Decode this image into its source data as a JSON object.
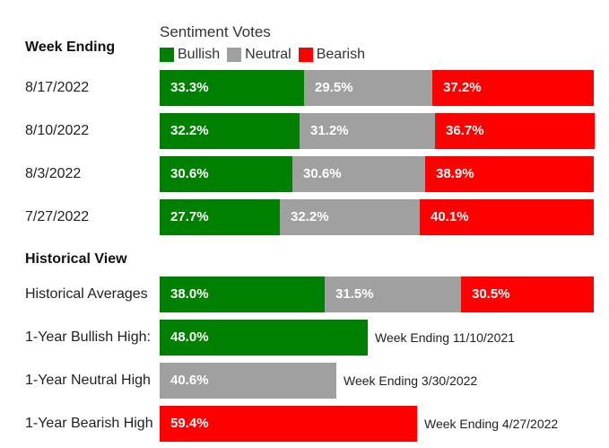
{
  "legend": {
    "title": "Sentiment Votes",
    "items": [
      {
        "label": "Bullish",
        "color": "#008000"
      },
      {
        "label": "Neutral",
        "color": "#a0a0a0"
      },
      {
        "label": "Bearish",
        "color": "#ff0000"
      }
    ]
  },
  "sections": {
    "weekly_heading": "Week Ending",
    "historical_heading": "Historical View"
  },
  "chart_data": {
    "type": "bar",
    "stacked": true,
    "orientation": "horizontal",
    "title": "Sentiment Votes",
    "series_colors": {
      "Bullish": "#008000",
      "Neutral": "#a0a0a0",
      "Bearish": "#ff0000"
    },
    "weekly": [
      {
        "label": "8/17/2022",
        "values": [
          {
            "series": "Bullish",
            "value": 33.3,
            "text": "33.3%"
          },
          {
            "series": "Neutral",
            "value": 29.5,
            "text": "29.5%"
          },
          {
            "series": "Bearish",
            "value": 37.2,
            "text": "37.2%"
          }
        ]
      },
      {
        "label": "8/10/2022",
        "values": [
          {
            "series": "Bullish",
            "value": 32.2,
            "text": "32.2%"
          },
          {
            "series": "Neutral",
            "value": 31.2,
            "text": "31.2%"
          },
          {
            "series": "Bearish",
            "value": 36.7,
            "text": "36.7%"
          }
        ]
      },
      {
        "label": "8/3/2022",
        "values": [
          {
            "series": "Bullish",
            "value": 30.6,
            "text": "30.6%"
          },
          {
            "series": "Neutral",
            "value": 30.6,
            "text": "30.6%"
          },
          {
            "series": "Bearish",
            "value": 38.9,
            "text": "38.9%"
          }
        ]
      },
      {
        "label": "7/27/2022",
        "values": [
          {
            "series": "Bullish",
            "value": 27.7,
            "text": "27.7%"
          },
          {
            "series": "Neutral",
            "value": 32.2,
            "text": "32.2%"
          },
          {
            "series": "Bearish",
            "value": 40.1,
            "text": "40.1%"
          }
        ]
      }
    ],
    "historical": [
      {
        "label": "Historical Averages",
        "values": [
          {
            "series": "Bullish",
            "value": 38.0,
            "text": "38.0%"
          },
          {
            "series": "Neutral",
            "value": 31.5,
            "text": "31.5%"
          },
          {
            "series": "Bearish",
            "value": 30.5,
            "text": "30.5%"
          }
        ]
      },
      {
        "label": "1-Year Bullish High:",
        "values": [
          {
            "series": "Bullish",
            "value": 48.0,
            "text": "48.0%"
          }
        ],
        "note": "Week Ending 11/10/2021"
      },
      {
        "label": "1-Year Neutral High",
        "values": [
          {
            "series": "Neutral",
            "value": 40.6,
            "text": "40.6%"
          }
        ],
        "note": "Week Ending 3/30/2022"
      },
      {
        "label": "1-Year Bearish High",
        "values": [
          {
            "series": "Bearish",
            "value": 59.4,
            "text": "59.4%"
          }
        ],
        "note": "Week Ending 4/27/2022"
      }
    ],
    "xlim": [
      0,
      100
    ]
  }
}
